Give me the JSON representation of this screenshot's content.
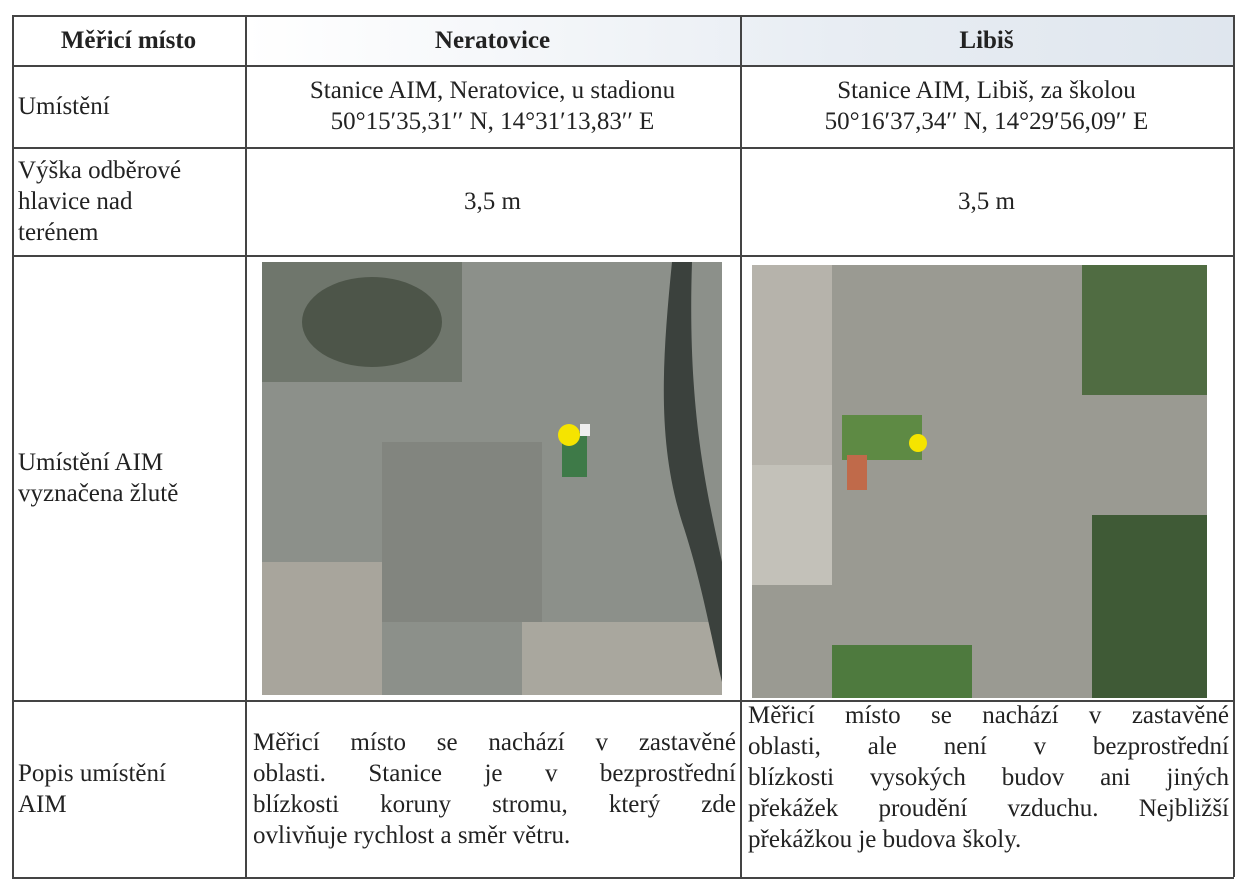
{
  "table": {
    "header": [
      "Měřicí místo",
      "Neratovice",
      "Libiš"
    ],
    "rows": [
      [
        [
          "Umístění"
        ],
        [
          "Stanice AIM, Neratovice, u stadionu",
          "50°15′35,31′′ N, 14°31′13,83′′ E"
        ],
        [
          "Stanice AIM, Libiš, za školou",
          "50°16′37,34′′ N, 14°29′56,09′′ E"
        ]
      ],
      [
        [
          "Výška odběrové",
          "hlavice nad",
          "terénem"
        ],
        [
          "3,5 m"
        ],
        [
          "3,5 m"
        ]
      ],
      [
        [
          "Umístění AIM",
          "vyznačena žlutě"
        ]
      ],
      [
        [
          "Popis umístění",
          "AIM"
        ],
        [
          "Měřicí místo se nachází v zastavěné",
          "oblasti. Stanice je v bezprostřední",
          "blízkosti koruny stromu, který zde",
          "ovlivňuje rychlost a směr větru."
        ],
        [
          "Měřicí místo se nachází v zastavěné",
          "oblasti, ale není v bezprostřední",
          "blízkosti vysokých budov ani jiných",
          "překážek proudění vzduchu. Nejbližší",
          "překážkou je budova školy."
        ]
      ]
    ]
  }
}
